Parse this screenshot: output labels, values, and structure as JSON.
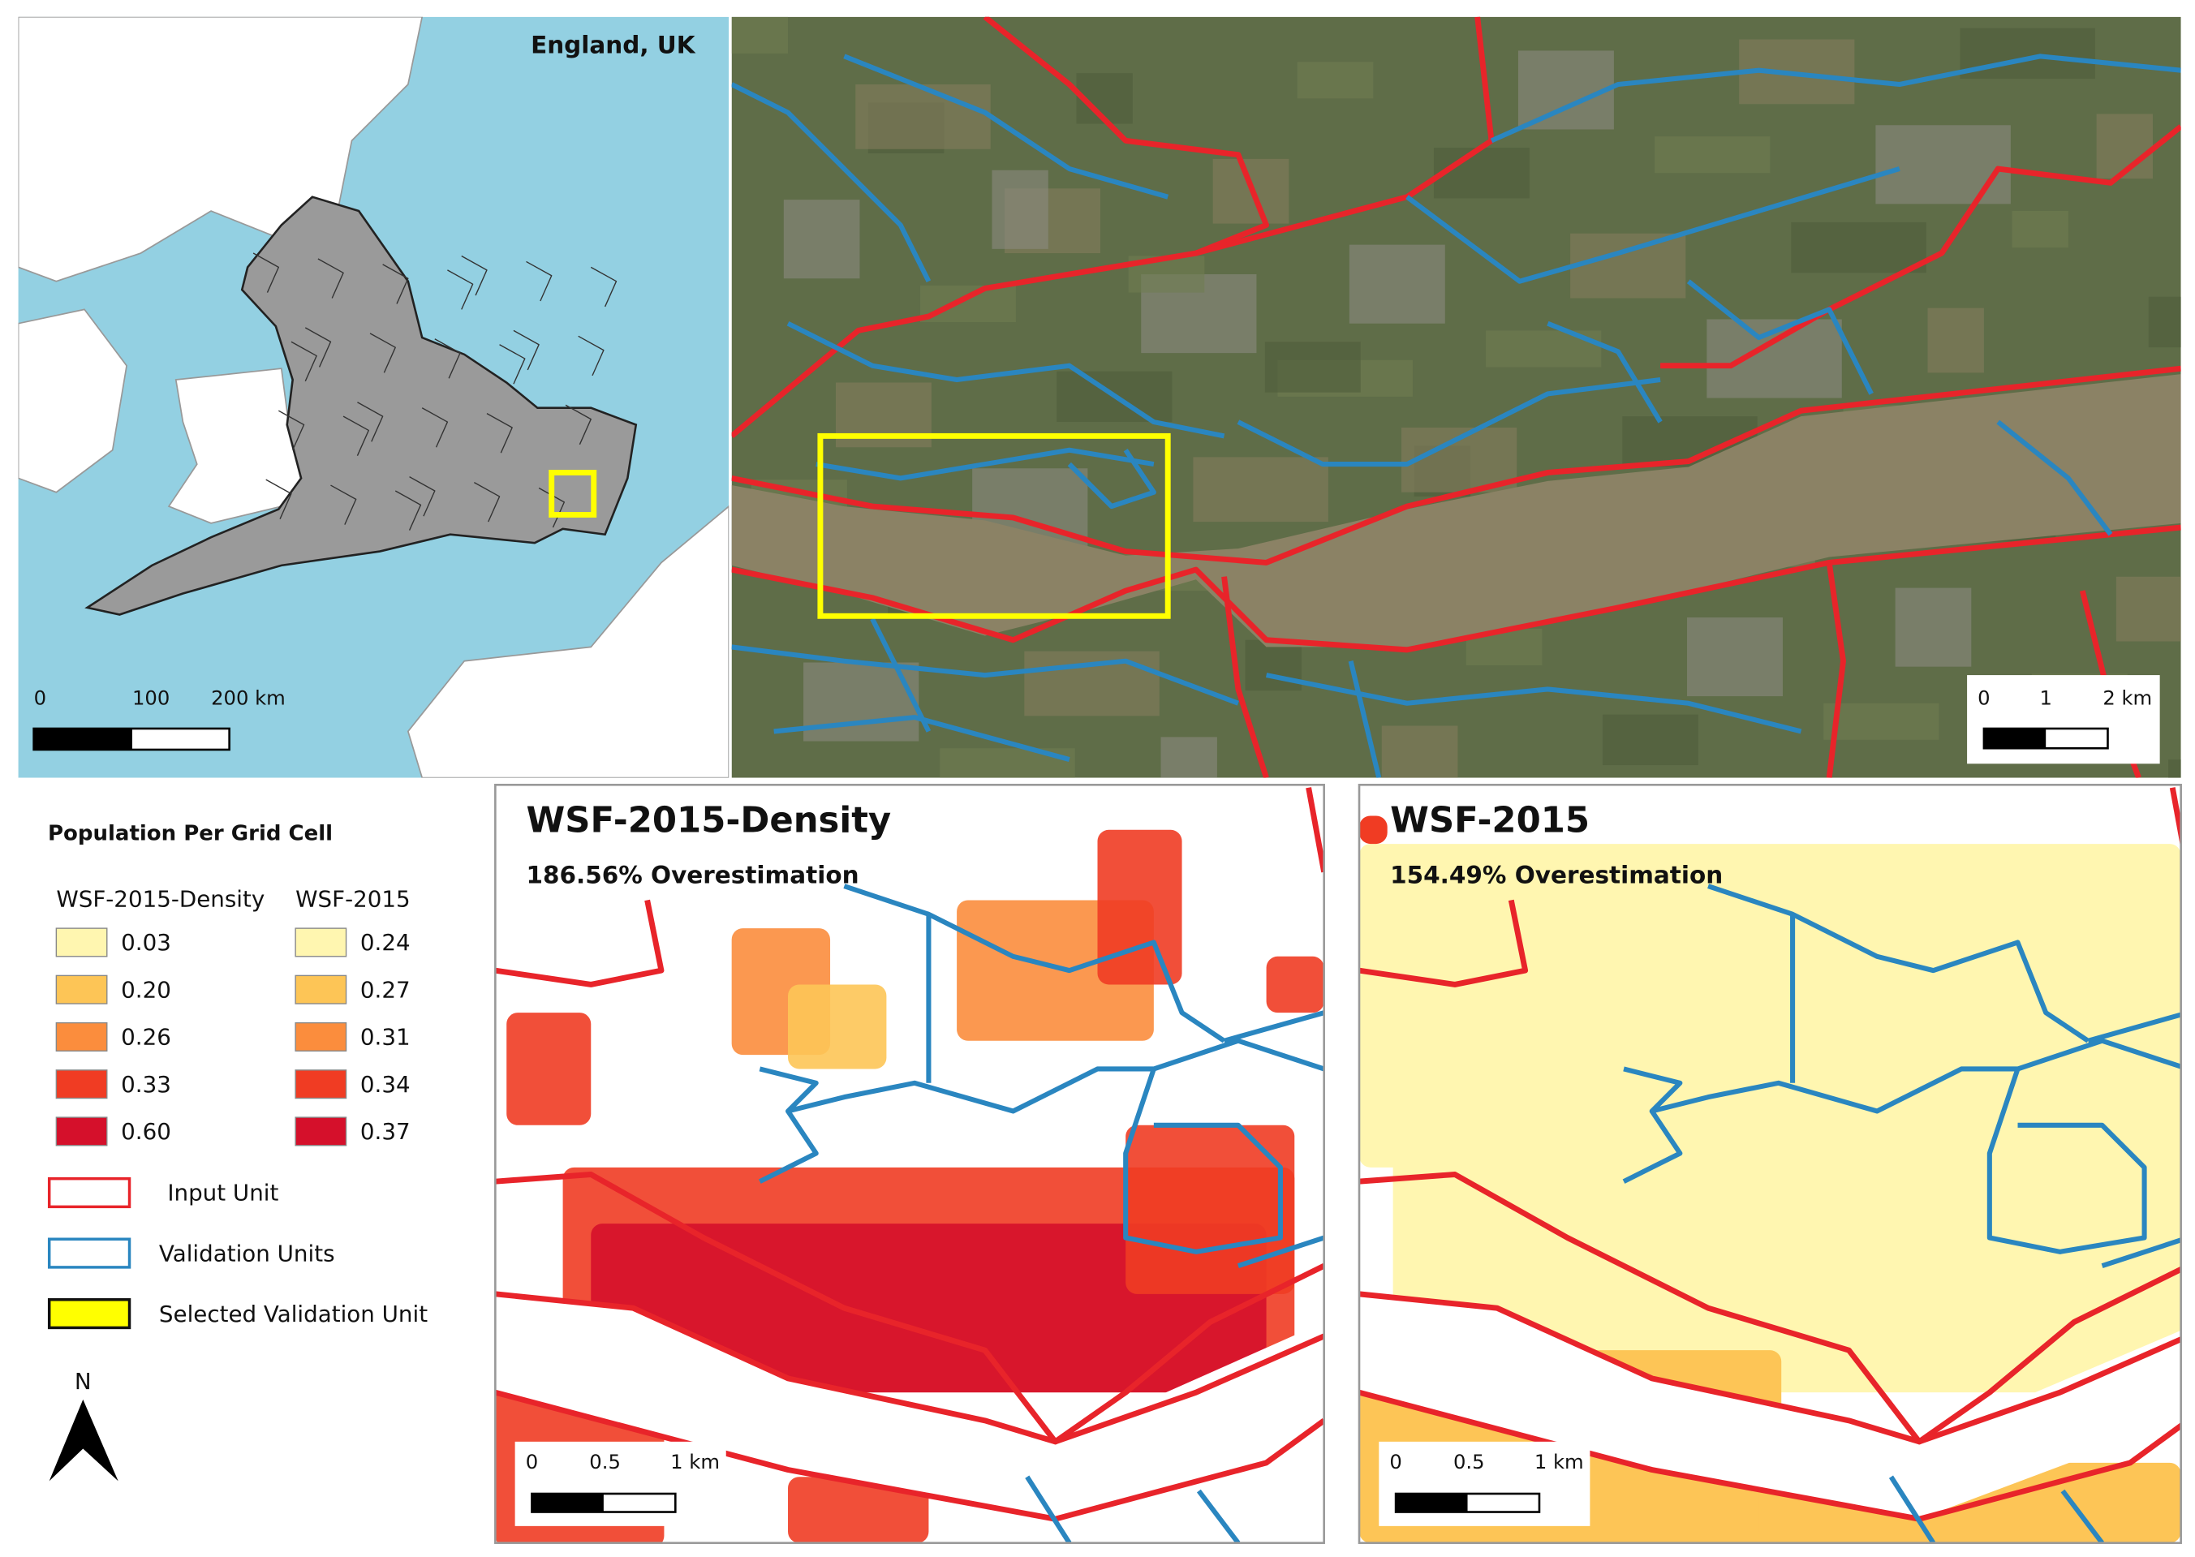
{
  "overview_map": {
    "label": "England, UK",
    "scale_bar": [
      "0",
      "100",
      "200 km"
    ]
  },
  "satellite_map": {
    "scale_bar": [
      "0",
      "1",
      "2 km"
    ]
  },
  "legend": {
    "title": "Population Per Grid Cell",
    "columns": [
      {
        "header": "WSF-2015-Density",
        "classes": [
          {
            "label": "0.03",
            "color": "#fff6b0"
          },
          {
            "label": "0.20",
            "color": "#fdc556"
          },
          {
            "label": "0.26",
            "color": "#fb8d3d"
          },
          {
            "label": "0.33",
            "color": "#f03c23"
          },
          {
            "label": "0.60",
            "color": "#d5102b"
          }
        ]
      },
      {
        "header": "WSF-2015",
        "classes": [
          {
            "label": "0.24",
            "color": "#fff6b0"
          },
          {
            "label": "0.27",
            "color": "#fdc556"
          },
          {
            "label": "0.31",
            "color": "#fb8d3d"
          },
          {
            "label": "0.34",
            "color": "#f03c23"
          },
          {
            "label": "0.37",
            "color": "#d5102b"
          }
        ]
      }
    ],
    "boundaries": [
      {
        "label": "Input Unit",
        "stroke": "#e8242a",
        "fill": "#ffffff"
      },
      {
        "label": "Validation Units",
        "stroke": "#2a86c0",
        "fill": "#ffffff"
      },
      {
        "label": "Selected Validation Unit",
        "stroke": "#111111",
        "fill": "#ffff00"
      }
    ],
    "north_arrow": "N"
  },
  "panels": [
    {
      "title": "WSF-2015-Density",
      "subtitle": "186.56% Overestimation",
      "scale_bar": [
        "0",
        "0.5",
        "1 km"
      ]
    },
    {
      "title": "WSF-2015",
      "subtitle": "154.49% Overestimation",
      "scale_bar": [
        "0",
        "0.5",
        "1 km"
      ]
    }
  ]
}
